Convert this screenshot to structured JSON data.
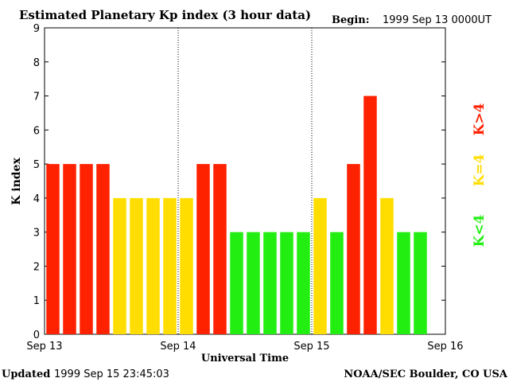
{
  "chart_data": {
    "type": "bar",
    "title": "Estimated Planetary Kp index (3 hour data)",
    "begin_label": "Begin:",
    "begin_value": "1999 Sep 13 0000UT",
    "xlabel": "Universal Time",
    "ylabel": "K index",
    "ylim": [
      0,
      9
    ],
    "yticks": [
      "0",
      "1",
      "2",
      "3",
      "4",
      "5",
      "6",
      "7",
      "8",
      "9"
    ],
    "x_day_labels": [
      "Sep 13",
      "Sep 14",
      "Sep 15",
      "Sep 16"
    ],
    "values": [
      5,
      5,
      5,
      5,
      4,
      4,
      4,
      4,
      4,
      5,
      5,
      3,
      3,
      3,
      3,
      3,
      4,
      3,
      5,
      7,
      4,
      3,
      3
    ],
    "colors": {
      "low": "#22ee11",
      "mid": "#ffdd00",
      "high": "#ff2200"
    },
    "legend": [
      {
        "label": "K>4",
        "color": "#ff2200"
      },
      {
        "label": "K=4",
        "color": "#ffdd00"
      },
      {
        "label": "K<4",
        "color": "#22ee11"
      }
    ],
    "grid": "vertical dotted lines at day boundaries"
  },
  "footer": {
    "updated_label": "Updated",
    "updated_value": "1999 Sep 15 23:45:03",
    "source": "NOAA/SEC Boulder, CO USA"
  }
}
